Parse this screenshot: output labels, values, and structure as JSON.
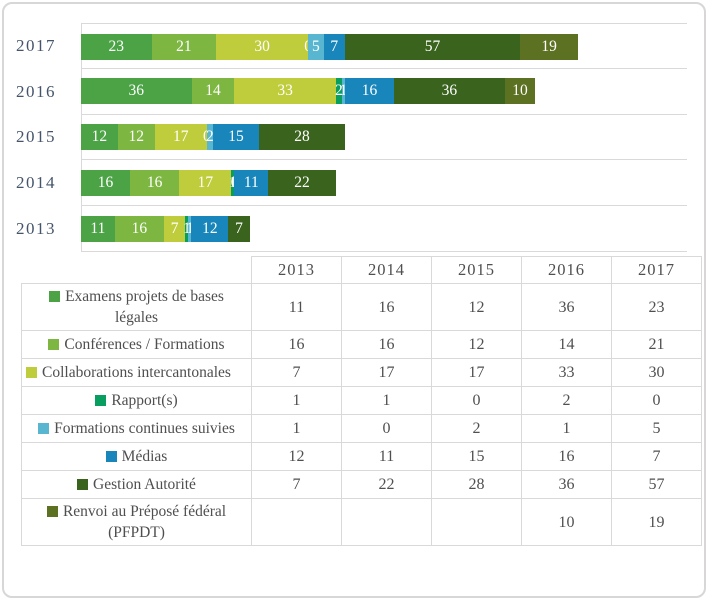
{
  "chart_data": {
    "type": "bar",
    "stacked": true,
    "orientation": "horizontal",
    "title": "",
    "years": [
      "2013",
      "2014",
      "2015",
      "2016",
      "2017"
    ],
    "bar_row_order": [
      "2017",
      "2016",
      "2015",
      "2014",
      "2013"
    ],
    "xlim": [
      0,
      200
    ],
    "grid": true,
    "axis_tick_labels_hidden": true,
    "series": [
      {
        "name": "Examens projets de bases légales",
        "color": "#4CA346",
        "values": [
          11,
          16,
          12,
          36,
          23
        ]
      },
      {
        "name": "Conférences / Formations",
        "color": "#7DB742",
        "values": [
          16,
          16,
          12,
          14,
          21
        ]
      },
      {
        "name": "Collaborations intercantonales",
        "color": "#BFCD3C",
        "values": [
          7,
          17,
          17,
          33,
          30
        ]
      },
      {
        "name": "Rapport(s)",
        "color": "#089E60",
        "values": [
          1,
          1,
          0,
          2,
          0
        ]
      },
      {
        "name": "Formations continues suivies",
        "color": "#58B6D0",
        "values": [
          1,
          0,
          2,
          1,
          5
        ]
      },
      {
        "name": "Médias",
        "color": "#1886BA",
        "values": [
          12,
          11,
          15,
          16,
          7
        ]
      },
      {
        "name": "Gestion Autorité",
        "color": "#3A631E",
        "values": [
          7,
          22,
          28,
          36,
          57
        ]
      },
      {
        "name": "Renvoi au Préposé fédéral (PFPDT)",
        "color": "#5C7122",
        "values": [
          null,
          null,
          null,
          10,
          19
        ]
      }
    ]
  },
  "table": {
    "corner_label": "",
    "column_headers": [
      "2013",
      "2014",
      "2015",
      "2016",
      "2017"
    ]
  },
  "colors": {
    "grid": "#d9d9d9",
    "axis_text": "#44546a",
    "table_text": "#4f4f4f",
    "bar_label_text": "#ffffff",
    "figure_border": "#d8d6d6"
  }
}
